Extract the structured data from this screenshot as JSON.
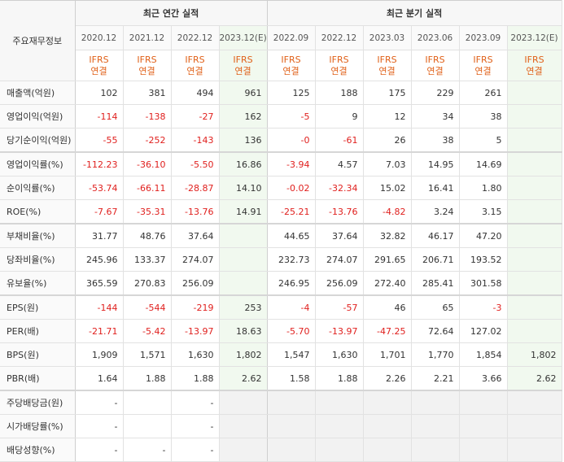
{
  "header": {
    "corner_label": "주요재무정보",
    "annual_title": "최근 연간 실적",
    "quarterly_title": "최근 분기 실적",
    "periods": [
      "2020.12",
      "2021.12",
      "2022.12",
      "2023.12(E)",
      "2022.09",
      "2022.12",
      "2023.03",
      "2023.06",
      "2023.09",
      "2023.12(E)"
    ],
    "ifrs_line1": "IFRS",
    "ifrs_line2": "연결"
  },
  "estimate_columns": [
    3,
    9
  ],
  "rows": [
    {
      "label": "매출액(억원)",
      "values": [
        "102",
        "381",
        "494",
        "961",
        "125",
        "188",
        "175",
        "229",
        "261",
        ""
      ]
    },
    {
      "label": "영업이익(억원)",
      "values": [
        "-114",
        "-138",
        "-27",
        "162",
        "-5",
        "9",
        "12",
        "34",
        "38",
        ""
      ]
    },
    {
      "label": "당기순이익(억원)",
      "values": [
        "-55",
        "-252",
        "-143",
        "136",
        "-0",
        "-61",
        "26",
        "38",
        "5",
        ""
      ]
    },
    {
      "label": "영업이익률(%)",
      "values": [
        "-112.23",
        "-36.10",
        "-5.50",
        "16.86",
        "-3.94",
        "4.57",
        "7.03",
        "14.95",
        "14.69",
        ""
      ]
    },
    {
      "label": "순이익률(%)",
      "values": [
        "-53.74",
        "-66.11",
        "-28.87",
        "14.10",
        "-0.02",
        "-32.34",
        "15.02",
        "16.41",
        "1.80",
        ""
      ]
    },
    {
      "label": "ROE(%)",
      "values": [
        "-7.67",
        "-35.31",
        "-13.76",
        "14.91",
        "-25.21",
        "-13.76",
        "-4.82",
        "3.24",
        "3.15",
        ""
      ]
    },
    {
      "label": "부채비율(%)",
      "values": [
        "31.77",
        "48.76",
        "37.64",
        "",
        "44.65",
        "37.64",
        "32.82",
        "46.17",
        "47.20",
        ""
      ]
    },
    {
      "label": "당좌비율(%)",
      "values": [
        "245.96",
        "133.37",
        "274.07",
        "",
        "232.73",
        "274.07",
        "291.65",
        "206.71",
        "193.52",
        ""
      ]
    },
    {
      "label": "유보율(%)",
      "values": [
        "365.59",
        "270.83",
        "256.09",
        "",
        "246.95",
        "256.09",
        "272.40",
        "285.41",
        "301.58",
        ""
      ]
    },
    {
      "label": "EPS(원)",
      "values": [
        "-144",
        "-544",
        "-219",
        "253",
        "-4",
        "-57",
        "46",
        "65",
        "-3",
        ""
      ]
    },
    {
      "label": "PER(배)",
      "values": [
        "-21.71",
        "-5.42",
        "-13.97",
        "18.63",
        "-5.70",
        "-13.97",
        "-47.25",
        "72.64",
        "127.02",
        ""
      ]
    },
    {
      "label": "BPS(원)",
      "values": [
        "1,909",
        "1,571",
        "1,630",
        "1,802",
        "1,547",
        "1,630",
        "1,701",
        "1,770",
        "1,854",
        "1,802"
      ]
    },
    {
      "label": "PBR(배)",
      "values": [
        "1.64",
        "1.88",
        "1.88",
        "2.62",
        "1.58",
        "1.88",
        "2.26",
        "2.21",
        "3.66",
        "2.62"
      ]
    },
    {
      "label": "주당배당금(원)",
      "values": [
        "-",
        "",
        "-",
        "",
        "",
        "",
        "",
        "",
        "",
        ""
      ]
    },
    {
      "label": "시가배당률(%)",
      "values": [
        "-",
        "",
        "-",
        "",
        "",
        "",
        "",
        "",
        "",
        ""
      ]
    },
    {
      "label": "배당성향(%)",
      "values": [
        "-",
        "-",
        "-",
        "",
        "",
        "",
        "",
        "",
        "",
        ""
      ]
    }
  ],
  "group_breaks_after": [
    2,
    5,
    8,
    12
  ]
}
